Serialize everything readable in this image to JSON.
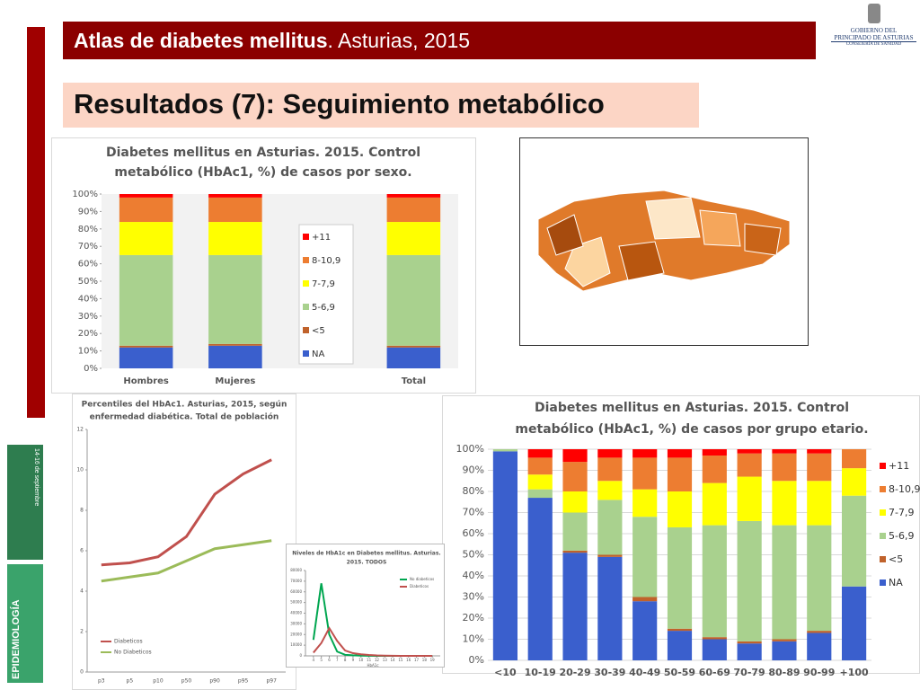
{
  "header": {
    "title_bold": "Atlas de diabetes mellitus",
    "title_rest": ". Asturias, 2015"
  },
  "logo": {
    "line1": "GOBIERNO DEL",
    "line2": "PRINCIPADO DE ASTURIAS",
    "line3": "CONSEJERÍA DE SANIDAD"
  },
  "slide_title": "Resultados (7): Seguimiento metabólico",
  "poster": {
    "top": "14-16 de septiembre",
    "bottom": "EPIDEMIOLOGÍA"
  },
  "chart_data": [
    {
      "type": "stacked_bar",
      "title": [
        "Diabetes mellitus en Asturias. 2015. Control",
        "metabólico (HbAc1, %) de casos por sexo."
      ],
      "categories": [
        "Hombres",
        "Mujeres",
        null,
        "Total"
      ],
      "series": [
        {
          "name": "NA",
          "color": "#3a5fcd",
          "values": [
            12,
            13,
            null,
            12
          ]
        },
        {
          "name": "<5",
          "color": "#c0622b",
          "values": [
            1,
            1,
            null,
            1
          ]
        },
        {
          "name": "5-6,9",
          "color": "#a9d18e",
          "values": [
            52,
            51,
            null,
            52
          ]
        },
        {
          "name": "7-7,9",
          "color": "#ffff00",
          "values": [
            19,
            19,
            null,
            19
          ]
        },
        {
          "name": "8-10,9",
          "color": "#ed7d31",
          "values": [
            14,
            14,
            null,
            14
          ]
        },
        {
          "name": "+11",
          "color": "#ff0000",
          "values": [
            2,
            2,
            null,
            2
          ]
        }
      ],
      "ylim": [
        0,
        100
      ],
      "yticks": [
        {
          "value": 0,
          "label": "0%"
        },
        {
          "value": 10,
          "label": "10%"
        },
        {
          "value": 20,
          "label": "20%"
        },
        {
          "value": 30,
          "label": "30%"
        },
        {
          "value": 40,
          "label": "40%"
        },
        {
          "value": 50,
          "label": "50%"
        },
        {
          "value": 60,
          "label": "60%"
        },
        {
          "value": 70,
          "label": "70%"
        },
        {
          "value": 80,
          "label": "80%"
        },
        {
          "value": 90,
          "label": "90%"
        },
        {
          "value": 100,
          "label": "100%"
        }
      ],
      "grid": false,
      "legend": "center"
    },
    {
      "type": "line",
      "title": [
        "Percentiles del HbAc1. Asturias, 2015, según",
        "enfermedad diabética. Total de población"
      ],
      "categories": [
        "p3",
        "p5",
        "p10",
        "p50",
        "p90",
        "p95",
        "p97"
      ],
      "series": [
        {
          "name": "Diabeticos",
          "color": "#c0504d",
          "values": [
            5.3,
            5.4,
            5.7,
            6.7,
            8.8,
            9.8,
            10.5
          ]
        },
        {
          "name": "No Diabeticos",
          "color": "#9bbb59",
          "values": [
            4.5,
            4.7,
            4.9,
            5.5,
            6.1,
            6.3,
            6.5
          ]
        }
      ],
      "ylim": [
        0,
        12
      ],
      "yticks": [
        0,
        2,
        4,
        6,
        8,
        10,
        12
      ],
      "grid": false,
      "legend": "lower left"
    },
    {
      "type": "line",
      "title": [
        "Niveles de HbA1c en Diabetes mellitus. Asturias.",
        "2015. TODOS"
      ],
      "x_label": "HbA1c",
      "x": [
        4,
        5,
        6,
        7,
        8,
        9,
        10,
        11,
        12,
        13,
        14,
        15,
        16,
        17,
        18,
        19
      ],
      "xlim": [
        3,
        20
      ],
      "xticks": [
        4,
        5,
        6,
        7,
        8,
        9,
        10,
        11,
        12,
        13,
        14,
        15,
        16,
        17,
        18,
        19
      ],
      "series": [
        {
          "name": "No diabeticos",
          "color": "#00a650",
          "values": [
            15000,
            68000,
            20000,
            4000,
            1000,
            500,
            200,
            100,
            50,
            0,
            0,
            0,
            0,
            0,
            0,
            0
          ]
        },
        {
          "name": "Diabeticos",
          "color": "#c0504d",
          "values": [
            3000,
            12000,
            26000,
            14000,
            5000,
            2500,
            1500,
            800,
            400,
            200,
            100,
            50,
            0,
            0,
            0,
            0
          ]
        }
      ],
      "ylim": [
        0,
        80000
      ],
      "yticks": [
        0,
        10000,
        20000,
        30000,
        40000,
        50000,
        60000,
        70000,
        80000
      ],
      "grid": false,
      "legend": "upper right"
    },
    {
      "type": "stacked_bar",
      "title": [
        "Diabetes mellitus en Asturias. 2015. Control",
        "metabólico (HbAc1, %) de casos por grupo etario."
      ],
      "categories": [
        "<10",
        "10-19",
        "20-29",
        "30-39",
        "40-49",
        "50-59",
        "60-69",
        "70-79",
        "80-89",
        "90-99",
        "+100"
      ],
      "series": [
        {
          "name": "NA",
          "color": "#3a5fcd",
          "values": [
            99,
            77,
            51,
            49,
            28,
            14,
            10,
            8,
            9,
            13,
            35
          ]
        },
        {
          "name": "<5",
          "color": "#c0622b",
          "values": [
            0,
            0,
            1,
            1,
            2,
            1,
            1,
            1,
            1,
            1,
            0
          ]
        },
        {
          "name": "5-6,9",
          "color": "#a9d18e",
          "values": [
            1,
            4,
            18,
            26,
            38,
            48,
            53,
            57,
            54,
            50,
            43
          ]
        },
        {
          "name": "7-7,9",
          "color": "#ffff00",
          "values": [
            0,
            7,
            10,
            9,
            13,
            17,
            20,
            21,
            21,
            21,
            13
          ]
        },
        {
          "name": "8-10,9",
          "color": "#ed7d31",
          "values": [
            0,
            8,
            14,
            11,
            15,
            16,
            13,
            11,
            13,
            13,
            9
          ]
        },
        {
          "name": "+11",
          "color": "#ff0000",
          "values": [
            0,
            4,
            6,
            4,
            4,
            4,
            3,
            2,
            2,
            2,
            0
          ]
        }
      ],
      "ylim": [
        0,
        100
      ],
      "yticks": [
        {
          "value": 0,
          "label": "0%"
        },
        {
          "value": 10,
          "label": "10%"
        },
        {
          "value": 20,
          "label": "20%"
        },
        {
          "value": 30,
          "label": "30%"
        },
        {
          "value": 40,
          "label": "40%"
        },
        {
          "value": 50,
          "label": "50%"
        },
        {
          "value": 60,
          "label": "60%"
        },
        {
          "value": 70,
          "label": "70%"
        },
        {
          "value": 80,
          "label": "80%"
        },
        {
          "value": 90,
          "label": "90%"
        },
        {
          "value": 100,
          "label": "100%"
        }
      ],
      "grid": true,
      "legend": "right"
    }
  ]
}
